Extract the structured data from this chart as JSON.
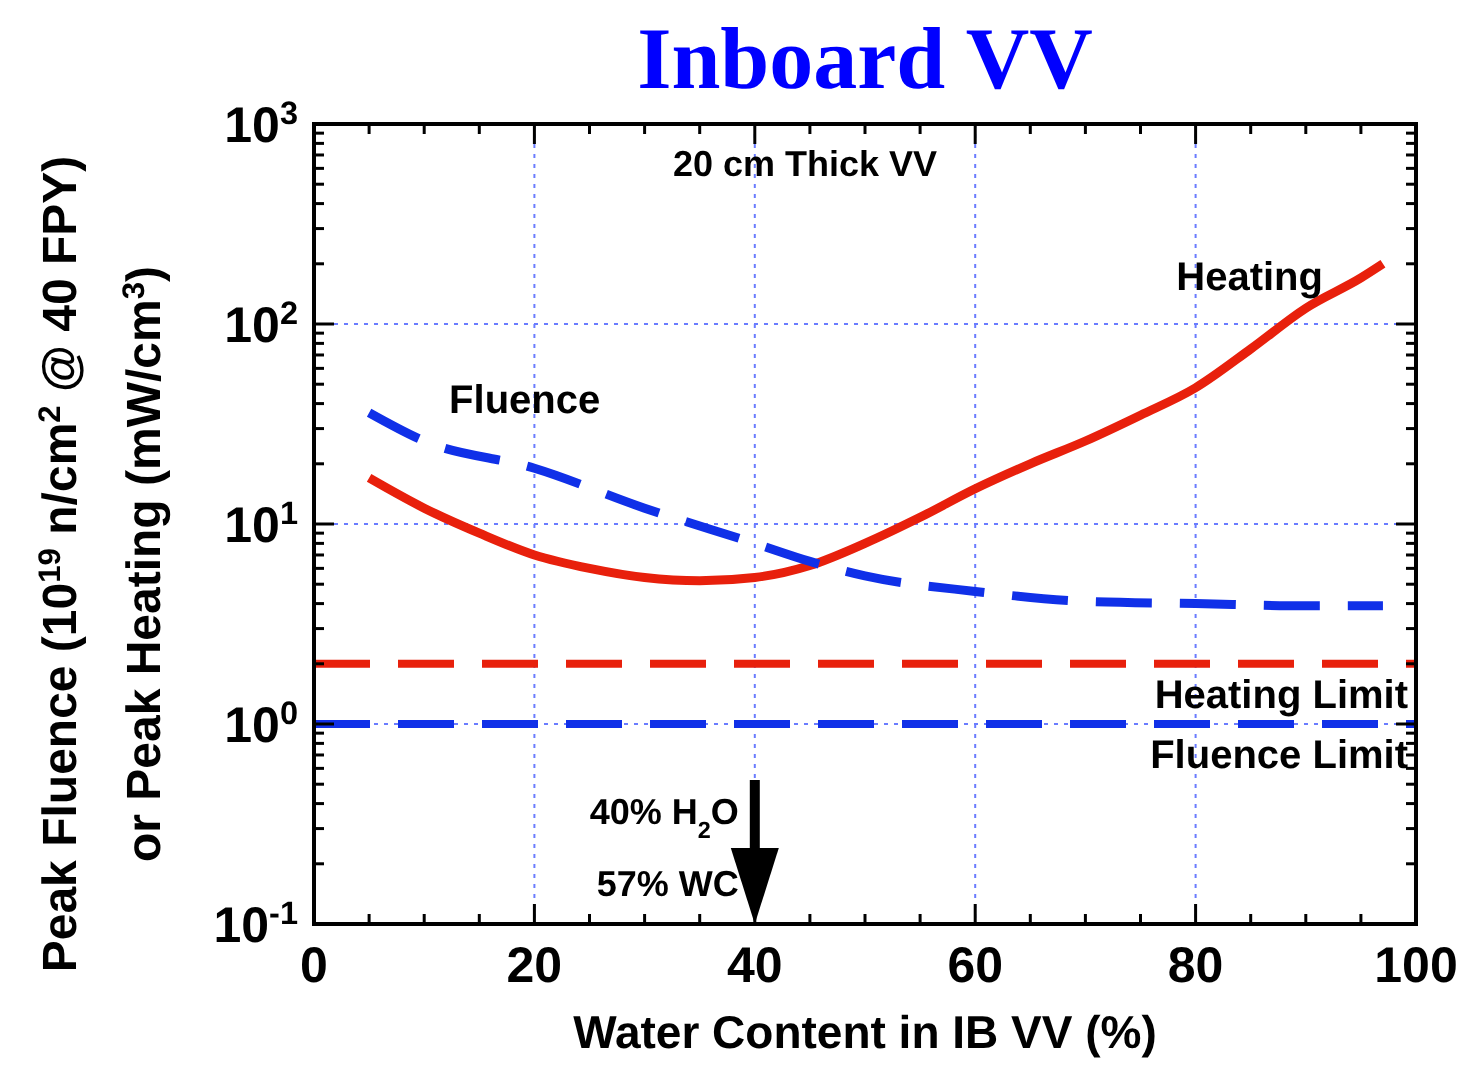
{
  "chart_data": {
    "type": "line",
    "title": "Inboard VV",
    "xlabel": "Water Content in IB VV (%)",
    "ylabel": "Peak Fluence (10$^{19}$ n/cm$^{2}$ @ 40 FPY)\nor  Peak Heating (mW/cm$^{3}$)",
    "log": "y",
    "grid": true,
    "xlim": [
      0,
      100
    ],
    "xticks": [
      0,
      20,
      40,
      60,
      80,
      100
    ],
    "ylim": [
      0.1,
      1000
    ],
    "yticks": [
      {
        "value": 0.1,
        "label": "10$^{-1}$"
      },
      {
        "value": 1,
        "label": "10$^{0}$"
      },
      {
        "value": 10,
        "label": "10$^{1}$"
      },
      {
        "value": 100,
        "label": "10$^{2}$"
      },
      {
        "value": 1000,
        "label": "10$^{3}$"
      }
    ],
    "series": [
      {
        "name": "Heating",
        "color": "#e8200c",
        "line_style": "solid",
        "x": [
          5,
          10,
          15,
          20,
          25,
          30,
          35,
          40,
          45,
          50,
          55,
          60,
          65,
          70,
          75,
          80,
          85,
          90,
          95,
          97
        ],
        "values": [
          17,
          12,
          9,
          7,
          6,
          5.4,
          5.2,
          5.4,
          6.2,
          8,
          10.8,
          15,
          20,
          26,
          35,
          48,
          75,
          120,
          170,
          200
        ]
      },
      {
        "name": "Fluence",
        "color": "#1030e8",
        "line_style": "dashed",
        "x": [
          5,
          10,
          20,
          30,
          40,
          45,
          50,
          60,
          70,
          80,
          90,
          97
        ],
        "values": [
          36,
          26,
          19,
          12,
          8,
          6.5,
          5.5,
          4.6,
          4.1,
          4,
          3.9,
          3.9
        ]
      }
    ],
    "ref_lines": [
      {
        "axis": "y",
        "value": 2,
        "label": "Heating Limit",
        "color": "#e8200c",
        "line_style": "dashed"
      },
      {
        "axis": "y",
        "value": 1,
        "label": "Fluence Limit",
        "color": "#1030e8",
        "line_style": "dashed"
      }
    ],
    "annotations": [
      "20 cm Thick VV",
      "40% H$_{2}$O\n57% WC"
    ]
  }
}
